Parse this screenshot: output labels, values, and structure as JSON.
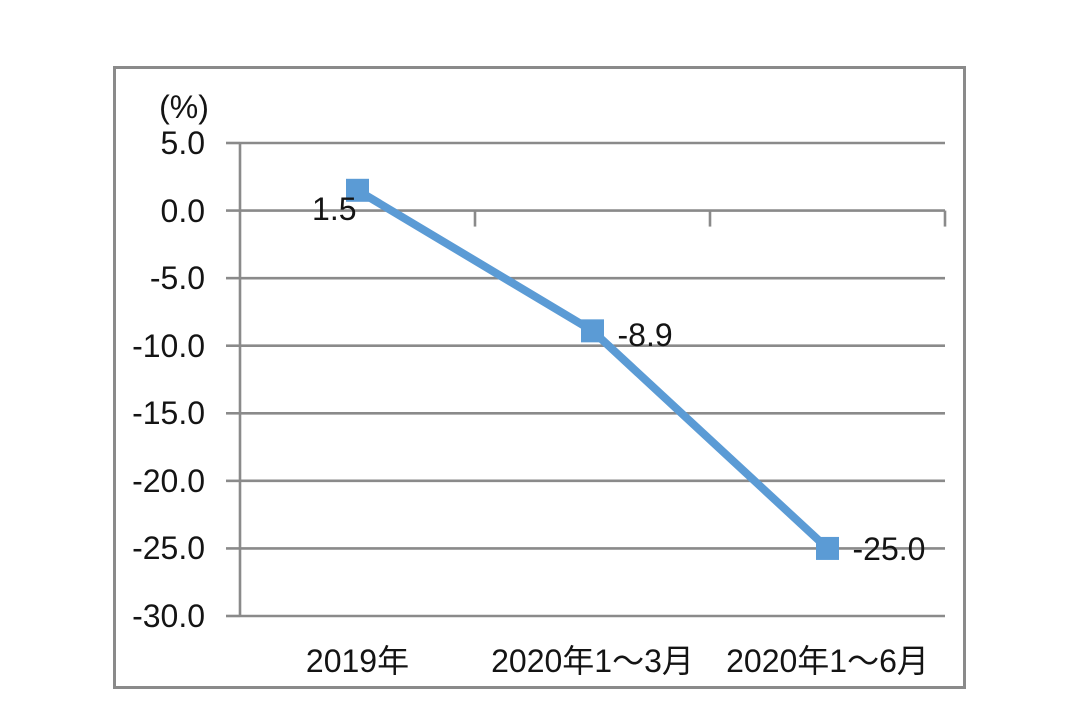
{
  "chart_data": {
    "type": "line",
    "categories": [
      "2019年",
      "2020年1～3月",
      "2020年1～6月"
    ],
    "values": [
      1.5,
      -8.9,
      -25.0
    ],
    "data_labels": [
      "1.5",
      "-8.9",
      "-25.0"
    ],
    "y_axis": {
      "unit_label": "(%)",
      "tick_values": [
        5,
        0,
        -5,
        -10,
        -15,
        -20,
        -25,
        -30
      ],
      "tick_labels": [
        "5.0",
        "0.0",
        "-5.0",
        "-10.0",
        "-15.0",
        "-20.0",
        "-25.0",
        "-30.0"
      ],
      "ylim": [
        -30,
        5
      ]
    },
    "grid": true,
    "legend": "none",
    "marker": "square",
    "colors": {
      "series": "#5B9BD5",
      "gridline": "#8a8a8a",
      "axis": "#8a8a8a",
      "frame_border": "#8a8a8a",
      "text": "#141414",
      "background": "#ffffff"
    }
  }
}
